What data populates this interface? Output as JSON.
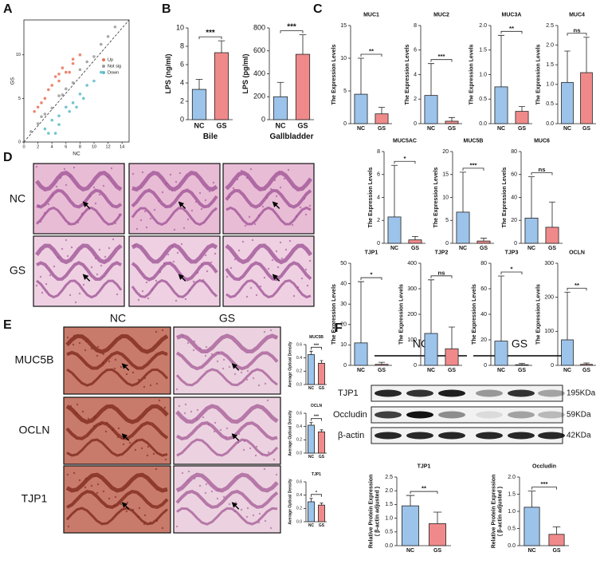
{
  "panels": [
    "A",
    "B",
    "C",
    "D",
    "E",
    "F"
  ],
  "micrographs": {
    "rows": [
      "NC",
      "GS"
    ]
  },
  "ihc": {
    "columns": [
      "NC",
      "GS"
    ],
    "rows": [
      "MUC5B",
      "OCLN",
      "TJP1"
    ]
  },
  "western_blot": {
    "groups": [
      "NC",
      "GS"
    ],
    "proteins": [
      "TJP1",
      "Occludin",
      "β-actin"
    ],
    "sizes": [
      "195KDa",
      "59KDa",
      "42KDa"
    ]
  },
  "chart_data": [
    {
      "type": "scatter",
      "xlabel": "NC",
      "ylabel": "GS",
      "xlim": [
        0,
        15
      ],
      "ylim": [
        0,
        14
      ],
      "xticks": [
        0,
        2,
        4,
        6,
        8,
        10,
        12,
        14
      ],
      "yticks": [
        0,
        5,
        10
      ],
      "legend": "right",
      "series": [
        {
          "name": "Up",
          "color": "#e8735a",
          "x": [
            2,
            3,
            4,
            5,
            6,
            7,
            4.5,
            5.5,
            3.5,
            6.5,
            2.5,
            8,
            5,
            7,
            1.5
          ],
          "y": [
            4,
            5,
            6.5,
            7,
            8,
            9,
            7.5,
            8.5,
            6,
            8,
            4.5,
            10,
            7.8,
            9.5,
            3.5
          ]
        },
        {
          "name": "Not sig",
          "color": "#9a9a9a",
          "x": [
            1,
            2,
            3,
            4,
            5,
            6,
            7,
            8,
            9,
            10,
            11,
            12,
            13,
            2.5,
            5.5
          ],
          "y": [
            1.2,
            2.1,
            3.2,
            3.9,
            5.3,
            6.1,
            6.8,
            8.3,
            9.2,
            9.8,
            11.2,
            12.1,
            13.2,
            2.9,
            5.4
          ]
        },
        {
          "name": "Down",
          "color": "#5bbcc8",
          "x": [
            3,
            4,
            5,
            6,
            7,
            8,
            5,
            6.5,
            9,
            4.5,
            7.5,
            10,
            3.5,
            8.5,
            11
          ],
          "y": [
            1.5,
            2.5,
            3,
            4,
            4.5,
            5.5,
            2,
            3.5,
            6.5,
            1,
            4,
            7,
            1,
            5,
            8
          ]
        }
      ]
    },
    {
      "type": "bar",
      "ylabel": "LPS (ng/ml)",
      "xlabel": "Bile",
      "categories": [
        "NC",
        "GS"
      ],
      "values": [
        3.3,
        7.3
      ],
      "errors": [
        1.1,
        1.3
      ],
      "colors": [
        "#9cc3ea",
        "#f08a8a"
      ],
      "significance": "***",
      "ylim": [
        0,
        10
      ],
      "yticks": [
        0,
        2,
        4,
        6,
        8,
        10
      ]
    },
    {
      "type": "bar",
      "ylabel": "LPS (pg/ml)",
      "xlabel": "Gallbladder",
      "categories": [
        "NC",
        "GS"
      ],
      "values": [
        200,
        570
      ],
      "errors": [
        125,
        170
      ],
      "colors": [
        "#9cc3ea",
        "#f08a8a"
      ],
      "significance": "***",
      "ylim": [
        0,
        800
      ],
      "yticks": [
        0,
        200,
        400,
        600,
        800
      ]
    },
    {
      "type": "bar",
      "title": "MUC1",
      "ylabel": "The Expression Levels",
      "categories": [
        "NC",
        "GS"
      ],
      "values": [
        4.5,
        1.5
      ],
      "errors": [
        5.5,
        1
      ],
      "colors": [
        "#9cc3ea",
        "#f08a8a"
      ],
      "significance": "**",
      "ylim": [
        0,
        15
      ],
      "yticks": [
        0,
        5,
        10,
        15
      ]
    },
    {
      "type": "bar",
      "title": "MUC2",
      "ylabel": "The Expression Levels",
      "categories": [
        "NC",
        "GS"
      ],
      "values": [
        2.3,
        0.2
      ],
      "errors": [
        2.6,
        0.3
      ],
      "colors": [
        "#9cc3ea",
        "#f08a8a"
      ],
      "significance": "***",
      "ylim": [
        0,
        8
      ],
      "yticks": [
        0,
        2,
        4,
        6,
        8
      ]
    },
    {
      "type": "bar",
      "title": "MUC3A",
      "ylabel": "The Expression Levels",
      "categories": [
        "NC",
        "GS"
      ],
      "values": [
        0.75,
        0.25
      ],
      "errors": [
        1.05,
        0.1
      ],
      "colors": [
        "#9cc3ea",
        "#f08a8a"
      ],
      "significance": "**",
      "ylim": [
        0,
        2
      ],
      "yticks": [
        {
          "value": 0,
          "label": "0.0"
        },
        0.5,
        {
          "value": 1,
          "label": "1.0"
        },
        1.5,
        {
          "value": 2,
          "label": "2.0"
        }
      ]
    },
    {
      "type": "bar",
      "title": "MUC4",
      "ylabel": "The Expression Levels",
      "categories": [
        "NC",
        "GS"
      ],
      "values": [
        1.05,
        1.3
      ],
      "errors": [
        0.8,
        0.9
      ],
      "colors": [
        "#9cc3ea",
        "#f08a8a"
      ],
      "significance": "ns",
      "ylim": [
        0,
        2.5
      ],
      "yticks": [
        {
          "value": 0,
          "label": "0.0"
        },
        0.5,
        {
          "value": 1,
          "label": "1.0"
        },
        1.5,
        {
          "value": 2,
          "label": "2.0"
        },
        2.5
      ]
    },
    {
      "type": "bar",
      "title": "MUC5AC",
      "ylabel": "The Expression Levels",
      "categories": [
        "NC",
        "GS"
      ],
      "values": [
        2.3,
        0.3
      ],
      "errors": [
        4.5,
        0.3
      ],
      "colors": [
        "#9cc3ea",
        "#f08a8a"
      ],
      "significance": "*",
      "ylim": [
        0,
        8
      ],
      "yticks": [
        0,
        2,
        4,
        6,
        8
      ]
    },
    {
      "type": "bar",
      "title": "MUC5B",
      "ylabel": "The Expression Levels",
      "categories": [
        "NC",
        "GS"
      ],
      "values": [
        6.8,
        0.5
      ],
      "errors": [
        8.7,
        0.6
      ],
      "colors": [
        "#9cc3ea",
        "#f08a8a"
      ],
      "significance": "***",
      "ylim": [
        0,
        20
      ],
      "yticks": [
        0,
        5,
        10,
        15,
        20
      ]
    },
    {
      "type": "bar",
      "title": "MUC6",
      "ylabel": "The Expression Levels",
      "categories": [
        "NC",
        "GS"
      ],
      "values": [
        22,
        14
      ],
      "errors": [
        36,
        22
      ],
      "colors": [
        "#9cc3ea",
        "#f08a8a"
      ],
      "significance": "ns",
      "ylim": [
        0,
        80
      ],
      "yticks": [
        0,
        20,
        40,
        60,
        80
      ]
    },
    {
      "type": "bar",
      "title": "TJP1",
      "ylabel": "The Expression Levels",
      "categories": [
        "NC",
        "GS"
      ],
      "values": [
        11,
        0.5
      ],
      "errors": [
        30,
        1
      ],
      "colors": [
        "#9cc3ea",
        "#f08a8a"
      ],
      "significance": "*",
      "ylim": [
        0,
        50
      ],
      "yticks": [
        0,
        10,
        20,
        30,
        40,
        50
      ]
    },
    {
      "type": "bar",
      "title": "TJP2",
      "ylabel": "The Expression Levels",
      "categories": [
        "NC",
        "GS"
      ],
      "values": [
        125,
        65
      ],
      "errors": [
        210,
        85
      ],
      "colors": [
        "#9cc3ea",
        "#f08a8a"
      ],
      "significance": "ns",
      "ylim": [
        0,
        400
      ],
      "yticks": [
        0,
        100,
        200,
        300,
        400
      ]
    },
    {
      "type": "bar",
      "title": "TJP3",
      "ylabel": "The Expression Levels",
      "categories": [
        "NC",
        "GS"
      ],
      "values": [
        19,
        0.5
      ],
      "errors": [
        51,
        1
      ],
      "colors": [
        "#9cc3ea",
        "#f08a8a"
      ],
      "significance": "*",
      "ylim": [
        0,
        80
      ],
      "yticks": [
        0,
        20,
        40,
        60,
        80
      ]
    },
    {
      "type": "bar",
      "title": "OCLN",
      "ylabel": "The Expression Levels",
      "categories": [
        "NC",
        "GS"
      ],
      "values": [
        75,
        3
      ],
      "errors": [
        140,
        4
      ],
      "colors": [
        "#9cc3ea",
        "#f08a8a"
      ],
      "significance": "**",
      "ylim": [
        0,
        300
      ],
      "yticks": [
        0,
        100,
        200,
        300
      ]
    },
    {
      "type": "bar",
      "title": "MUC5B",
      "ylabel": "Average Optical Density",
      "categories": [
        "NC",
        "GS"
      ],
      "values": [
        0.45,
        0.32
      ],
      "errors": [
        0.05,
        0.04
      ],
      "colors": [
        "#9cc3ea",
        "#f08a8a"
      ],
      "significance": "***",
      "ylim": [
        0,
        0.6
      ],
      "yticks": [
        {
          "value": 0,
          "label": "0.0"
        },
        0.2,
        0.4,
        0.6
      ]
    },
    {
      "type": "bar",
      "title": "OCLN",
      "ylabel": "Average Optical Density",
      "categories": [
        "NC",
        "GS"
      ],
      "values": [
        0.42,
        0.32
      ],
      "errors": [
        0.04,
        0.03
      ],
      "colors": [
        "#9cc3ea",
        "#f08a8a"
      ],
      "significance": "***",
      "ylim": [
        0,
        0.6
      ],
      "yticks": [
        {
          "value": 0,
          "label": "0.0"
        },
        0.2,
        0.4,
        0.6
      ]
    },
    {
      "type": "bar",
      "title": "TJP1",
      "ylabel": "Average Optical Density",
      "categories": [
        "NC",
        "GS"
      ],
      "values": [
        0.3,
        0.25
      ],
      "errors": [
        0.05,
        0.03
      ],
      "colors": [
        "#9cc3ea",
        "#f08a8a"
      ],
      "significance": "*",
      "ylim": [
        0,
        0.6
      ],
      "yticks": [
        {
          "value": 0,
          "label": "0.0"
        },
        0.2,
        0.4,
        0.6
      ]
    },
    {
      "type": "bar",
      "title": "TJP1",
      "ylabel": [
        "Relative Protein Expression",
        "( β-actin adjusted )"
      ],
      "categories": [
        "NC",
        "GS"
      ],
      "values": [
        1.45,
        0.8
      ],
      "errors": [
        0.38,
        0.42
      ],
      "colors": [
        "#9cc3ea",
        "#f08a8a"
      ],
      "significance": "**",
      "ylim": [
        0,
        2.5
      ],
      "yticks": [
        {
          "value": 0,
          "label": "0.0"
        },
        0.5,
        {
          "value": 1,
          "label": "1.0"
        },
        1.5,
        {
          "value": 2,
          "label": "2.0"
        },
        2.5
      ]
    },
    {
      "type": "bar",
      "title": "Occludin",
      "ylabel": [
        "Relative Protein Expression",
        "( β-actin adjusted )"
      ],
      "categories": [
        "NC",
        "GS"
      ],
      "values": [
        1.12,
        0.33
      ],
      "errors": [
        0.47,
        0.22
      ],
      "colors": [
        "#9cc3ea",
        "#f08a8a"
      ],
      "significance": "***",
      "ylim": [
        0,
        2
      ],
      "yticks": [
        {
          "value": 0,
          "label": "0.0"
        },
        0.5,
        {
          "value": 1,
          "label": "1.0"
        },
        1.5,
        {
          "value": 2,
          "label": "2.0"
        }
      ]
    }
  ]
}
